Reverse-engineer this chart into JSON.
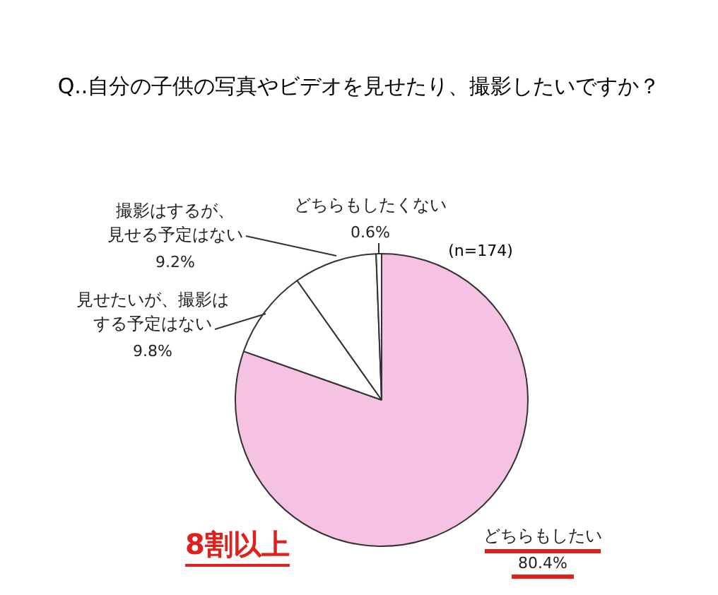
{
  "chart_data": {
    "type": "pie",
    "title": "Q..自分の子供の写真やビデオを見せたり、撮影したいですか？",
    "categories": [
      "どちらもしたい",
      "見せたいが、撮影はする予定はない",
      "撮影はするが、見せる予定はない",
      "どちらもしたくない"
    ],
    "values": [
      80.4,
      9.8,
      9.2,
      0.6
    ],
    "colors": [
      "#f5c2e4",
      "#ffffff",
      "#ffffff",
      "#ffffff"
    ],
    "value_labels": [
      "80.4%",
      "9.8%",
      "9.2%",
      "0.6%"
    ],
    "annotations": [
      "(n=174)",
      "8割以上"
    ]
  }
}
